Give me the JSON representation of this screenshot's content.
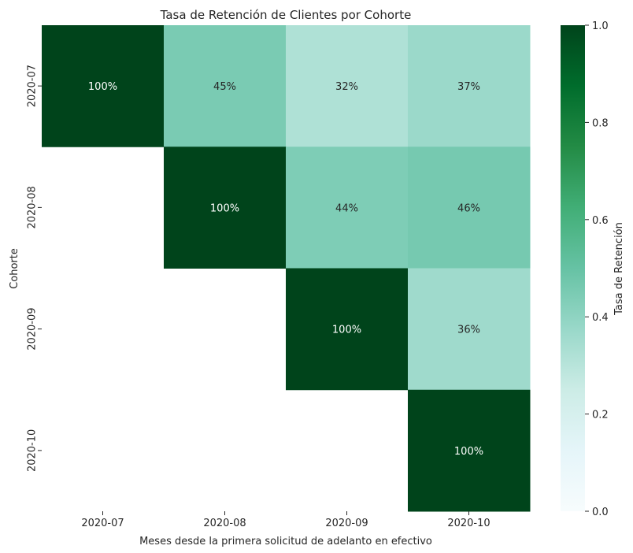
{
  "chart_data": {
    "type": "heatmap",
    "title": "Tasa de Retención de Clientes por Cohorte",
    "xlabel": "Meses desde la primera solicitud de adelanto en efectivo",
    "ylabel": "Cohorte",
    "x_categories": [
      "2020-07",
      "2020-08",
      "2020-09",
      "2020-10"
    ],
    "y_categories": [
      "2020-07",
      "2020-08",
      "2020-09",
      "2020-10"
    ],
    "values": [
      [
        1.0,
        0.45,
        0.32,
        0.37
      ],
      [
        null,
        1.0,
        0.44,
        0.46
      ],
      [
        null,
        null,
        1.0,
        0.36
      ],
      [
        null,
        null,
        null,
        1.0
      ]
    ],
    "cell_labels": [
      [
        "100%",
        "45%",
        "32%",
        "37%"
      ],
      [
        null,
        "100%",
        "44%",
        "46%"
      ],
      [
        null,
        null,
        "100%",
        "36%"
      ],
      [
        null,
        null,
        null,
        "100%"
      ]
    ],
    "colorbar": {
      "label": "Tasa de Retención",
      "range": [
        0,
        1
      ],
      "ticks": [
        "0.0",
        "0.2",
        "0.4",
        "0.6",
        "0.8",
        "1.0"
      ],
      "colormap": "BuGn",
      "stops": [
        "#f7fcfd",
        "#e5f5f9",
        "#ccece6",
        "#99d8c9",
        "#66c2a4",
        "#41ae76",
        "#238b45",
        "#006d2c",
        "#00441b"
      ]
    }
  }
}
